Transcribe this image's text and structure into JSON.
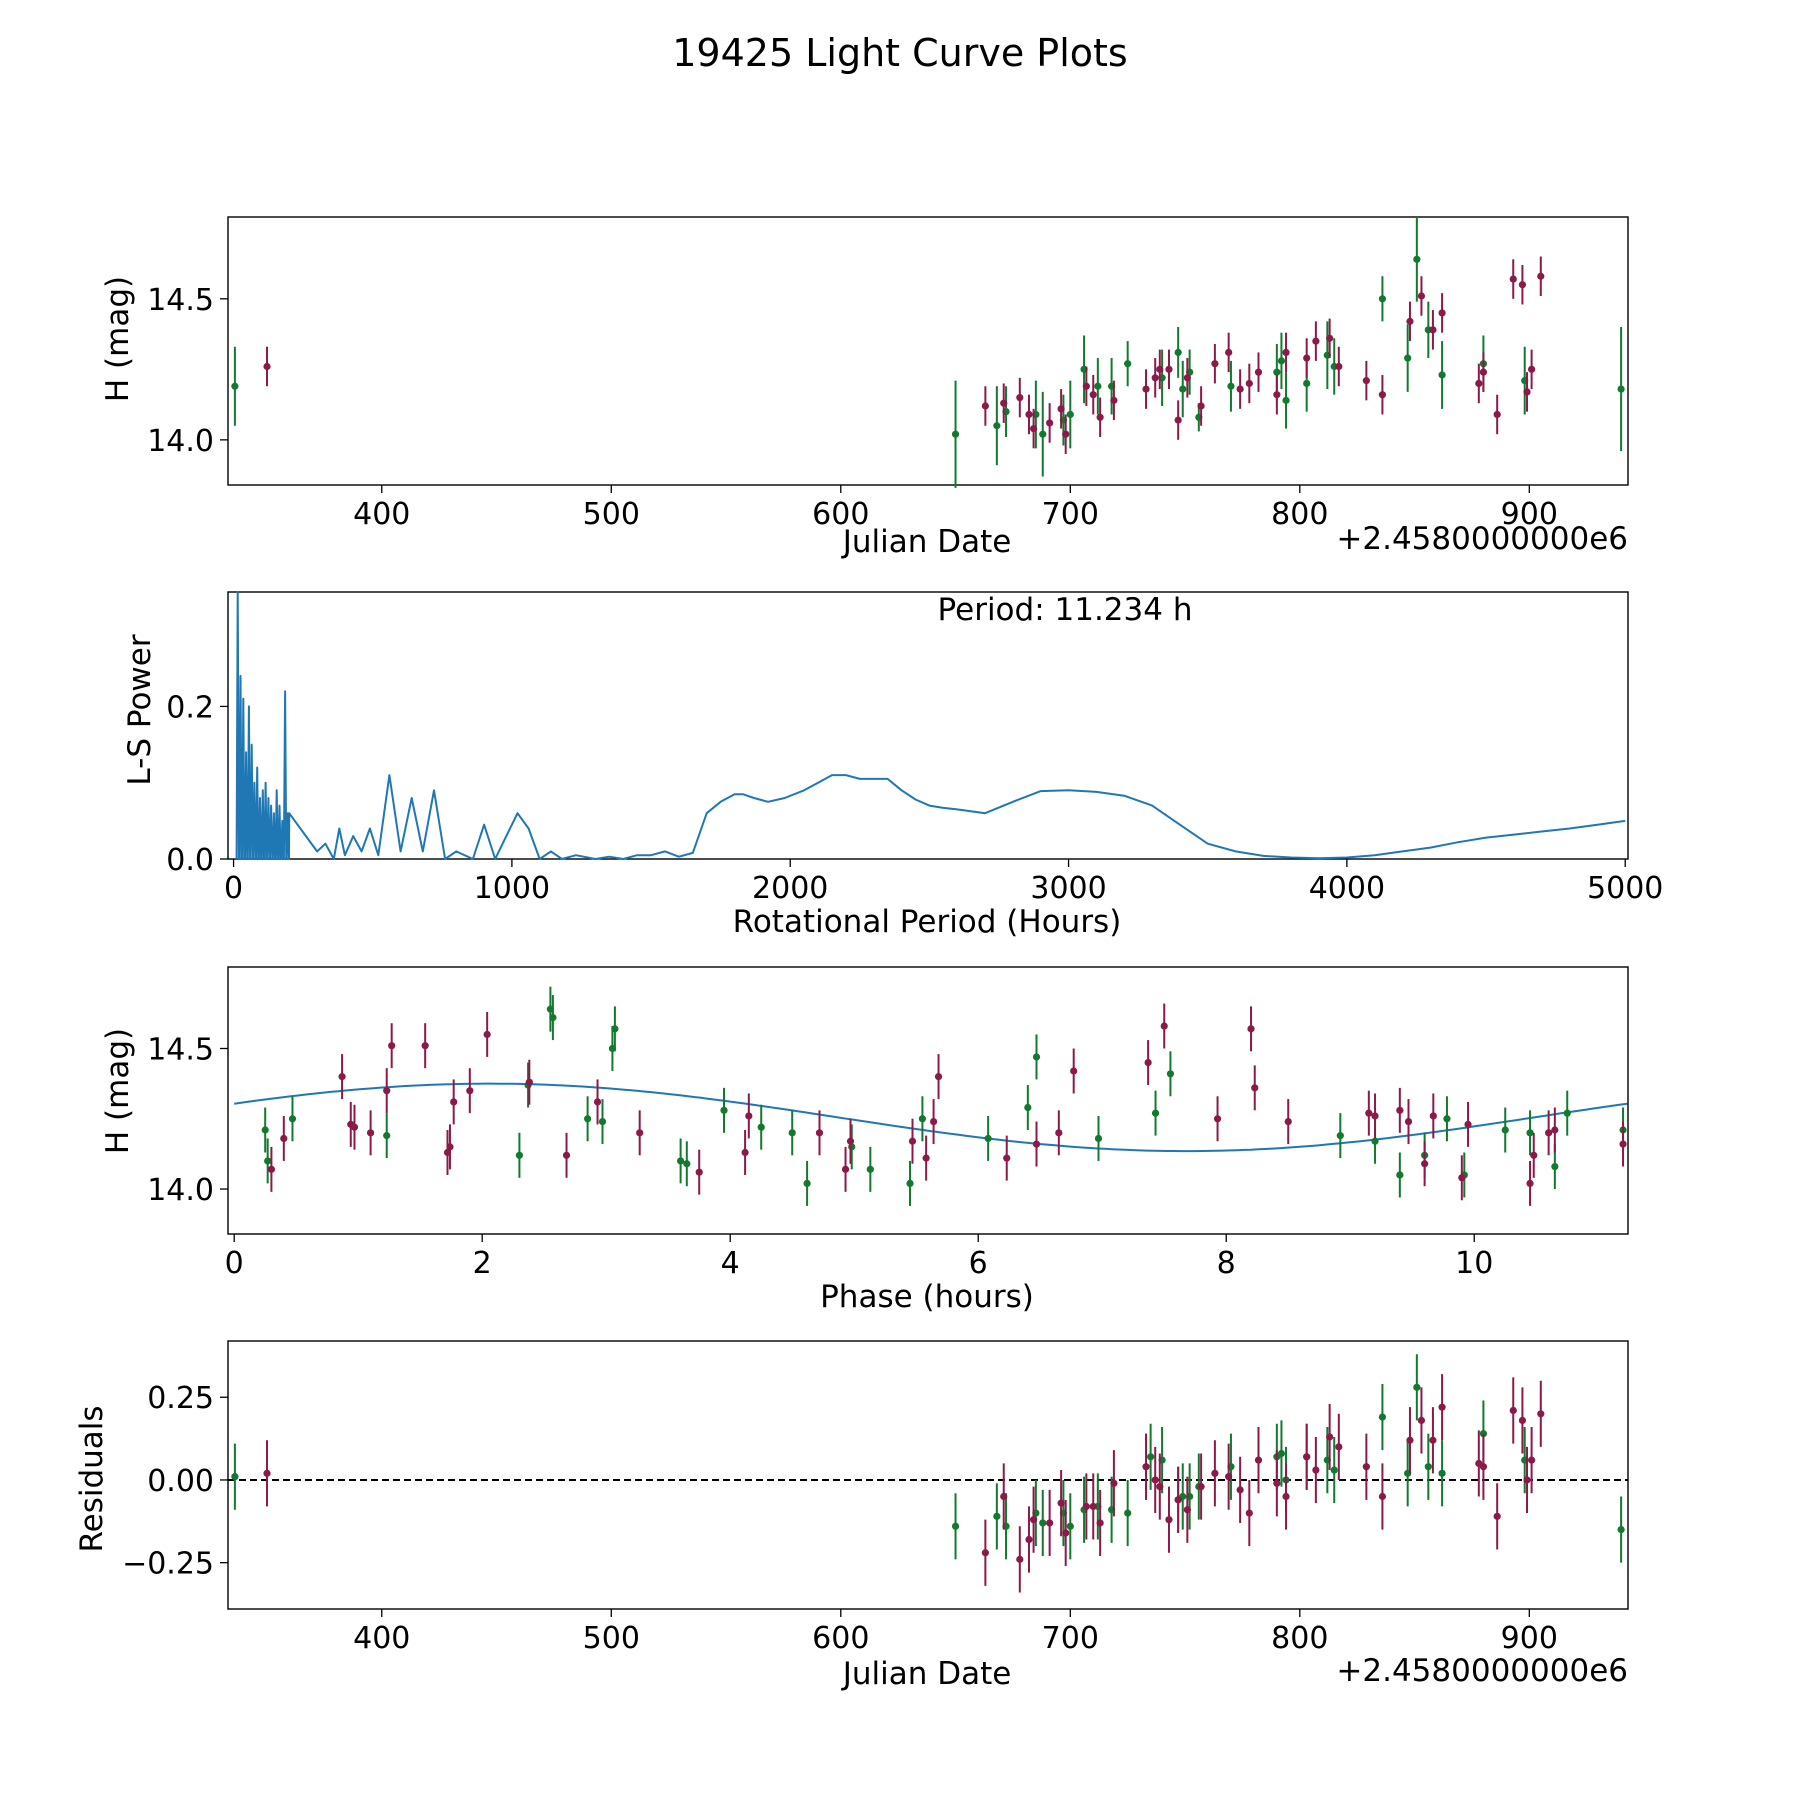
{
  "figure": {
    "title": "19425 Light Curve Plots",
    "colors": {
      "red": "#8b1a4a",
      "green": "#117a2e",
      "blue": "#1f77b4",
      "axis": "#000000"
    }
  },
  "chart_data": [
    {
      "id": "lc",
      "type": "scatter",
      "title": "",
      "xlabel": "Julian Date",
      "ylabel": "H (mag)",
      "offset_label": "+2.4580000000e6",
      "xlim": [
        333,
        943
      ],
      "ylim": [
        13.84,
        14.79
      ],
      "xticks": [
        400,
        500,
        600,
        700,
        800,
        900
      ],
      "yticks": [
        14.0,
        14.5
      ],
      "ytick_labels": [
        "14.0",
        "14.5"
      ],
      "series": [
        {
          "name": "green",
          "color": "#117a2e",
          "x": [
            336,
            650,
            668,
            672,
            685,
            688,
            697,
            700,
            706,
            712,
            718,
            725,
            740,
            747,
            749,
            752,
            756,
            770,
            790,
            792,
            794,
            803,
            812,
            815,
            836,
            847,
            851,
            856,
            862,
            880,
            898,
            940
          ],
          "y": [
            14.19,
            14.02,
            14.05,
            14.1,
            14.09,
            14.02,
            14.07,
            14.09,
            14.25,
            14.19,
            14.19,
            14.27,
            14.22,
            14.31,
            14.18,
            14.24,
            14.08,
            14.19,
            14.24,
            14.28,
            14.14,
            14.2,
            14.3,
            14.26,
            14.5,
            14.29,
            14.64,
            14.39,
            14.23,
            14.27,
            14.21,
            14.18
          ],
          "err": [
            0.14,
            0.19,
            0.14,
            0.09,
            0.12,
            0.15,
            0.09,
            0.12,
            0.12,
            0.1,
            0.1,
            0.08,
            0.1,
            0.09,
            0.1,
            0.08,
            0.05,
            0.09,
            0.1,
            0.1,
            0.1,
            0.1,
            0.12,
            0.1,
            0.08,
            0.12,
            0.15,
            0.1,
            0.12,
            0.1,
            0.12,
            0.22
          ]
        },
        {
          "name": "red",
          "color": "#8b1a4a",
          "x": [
            350,
            663,
            671,
            678,
            682,
            684,
            691,
            696,
            698,
            707,
            710,
            713,
            719,
            733,
            737,
            739,
            743,
            747,
            751,
            757,
            763,
            769,
            774,
            778,
            782,
            790,
            794,
            803,
            807,
            813,
            817,
            829,
            836,
            848,
            853,
            858,
            862,
            878,
            880,
            886,
            893,
            897,
            899,
            901,
            905
          ],
          "y": [
            14.26,
            14.12,
            14.13,
            14.15,
            14.09,
            14.04,
            14.06,
            14.11,
            14.02,
            14.19,
            14.16,
            14.08,
            14.14,
            14.18,
            14.22,
            14.25,
            14.25,
            14.07,
            14.22,
            14.12,
            14.27,
            14.31,
            14.18,
            14.2,
            14.24,
            14.16,
            14.31,
            14.29,
            14.35,
            14.36,
            14.26,
            14.21,
            14.16,
            14.42,
            14.51,
            14.39,
            14.45,
            14.2,
            14.24,
            14.09,
            14.57,
            14.55,
            14.17,
            14.25,
            14.58
          ]
        }
      ]
    },
    {
      "id": "ls",
      "type": "line",
      "title": "",
      "annotation": "Period: 11.234 h",
      "xlabel": "Rotational Period (Hours)",
      "ylabel": "L-S Power",
      "xlim": [
        -20,
        5010
      ],
      "ylim": [
        0.0,
        0.35
      ],
      "xticks": [
        0,
        1000,
        2000,
        3000,
        4000,
        5000
      ],
      "yticks": [
        0.0,
        0.2
      ],
      "ytick_labels": [
        "0.0",
        "0.2"
      ],
      "smooth": {
        "x": [
          200,
          260,
          300,
          330,
          360,
          380,
          400,
          430,
          460,
          490,
          520,
          560,
          600,
          640,
          680,
          720,
          760,
          800,
          860,
          900,
          940,
          980,
          1020,
          1060,
          1100,
          1140,
          1180,
          1230,
          1300,
          1350,
          1400,
          1450,
          1500,
          1550,
          1600,
          1650,
          1700,
          1750,
          1800,
          1830,
          1870,
          1920,
          1980,
          2050,
          2100,
          2150,
          2200,
          2250,
          2300,
          2350,
          2400,
          2450,
          2500,
          2550,
          2600,
          2700,
          2800,
          2900,
          3000,
          3100,
          3200,
          3300,
          3400,
          3500,
          3600,
          3700,
          3800,
          3900,
          4000,
          4100,
          4200,
          4300,
          4400,
          4500,
          4600,
          4700,
          4800,
          4900,
          5000
        ],
        "y": [
          0.06,
          0.03,
          0.01,
          0.02,
          0.0,
          0.04,
          0.005,
          0.03,
          0.01,
          0.04,
          0.005,
          0.11,
          0.01,
          0.08,
          0.01,
          0.09,
          0.0,
          0.01,
          0.0,
          0.045,
          0.0,
          0.03,
          0.06,
          0.04,
          0.0,
          0.01,
          0.0,
          0.005,
          0.0,
          0.003,
          0.0,
          0.005,
          0.005,
          0.01,
          0.003,
          0.008,
          0.06,
          0.075,
          0.085,
          0.085,
          0.08,
          0.075,
          0.08,
          0.09,
          0.1,
          0.11,
          0.11,
          0.105,
          0.105,
          0.105,
          0.09,
          0.078,
          0.07,
          0.067,
          0.065,
          0.06,
          0.075,
          0.089,
          0.09,
          0.088,
          0.083,
          0.07,
          0.045,
          0.02,
          0.01,
          0.004,
          0.002,
          0.001,
          0.002,
          0.005,
          0.01,
          0.015,
          0.022,
          0.028,
          0.032,
          0.036,
          0.04,
          0.045,
          0.05
        ]
      },
      "spikes": {
        "x": [
          15,
          25,
          35,
          45,
          55,
          65,
          75,
          85,
          95,
          105,
          115,
          125,
          135,
          145,
          155,
          165,
          175,
          185,
          195
        ],
        "y": [
          0.35,
          0.24,
          0.21,
          0.14,
          0.2,
          0.15,
          0.1,
          0.12,
          0.08,
          0.09,
          0.1,
          0.08,
          0.07,
          0.06,
          0.09,
          0.07,
          0.05,
          0.22,
          0.06
        ]
      }
    },
    {
      "id": "phase",
      "type": "scatter",
      "title": "",
      "xlabel": "Phase (hours)",
      "ylabel": "H (mag)",
      "xlim": [
        -0.05,
        11.24
      ],
      "ylim": [
        13.84,
        14.79
      ],
      "xticks": [
        0,
        2,
        4,
        6,
        8,
        10
      ],
      "yticks": [
        14.0,
        14.5
      ],
      "ytick_labels": [
        "14.0",
        "14.5"
      ],
      "model": {
        "period": 11.234,
        "mean": 14.255,
        "amplitude": 0.12,
        "peak_phase": 2.06
      },
      "series": [
        {
          "name": "green",
          "color": "#117a2e",
          "x": [
            0.25,
            0.27,
            0.47,
            1.23,
            2.3,
            2.37,
            2.55,
            2.57,
            2.85,
            2.97,
            3.05,
            3.07,
            3.6,
            3.65,
            3.95,
            4.25,
            4.5,
            4.62,
            4.98,
            5.13,
            5.45,
            5.55,
            6.08,
            6.4,
            6.47,
            6.97,
            7.43,
            7.55,
            8.92,
            9.2,
            9.4,
            9.6,
            9.78,
            9.92,
            10.25,
            10.45,
            10.65,
            10.75,
            11.2
          ],
          "y": [
            14.21,
            14.1,
            14.25,
            14.19,
            14.12,
            14.37,
            14.64,
            14.61,
            14.25,
            14.24,
            14.5,
            14.57,
            14.1,
            14.09,
            14.28,
            14.22,
            14.2,
            14.02,
            14.15,
            14.07,
            14.02,
            14.25,
            14.18,
            14.29,
            14.47,
            14.18,
            14.27,
            14.41,
            14.19,
            14.17,
            14.05,
            14.12,
            14.25,
            14.05,
            14.21,
            14.2,
            14.08,
            14.27,
            14.21
          ]
        },
        {
          "name": "red",
          "color": "#8b1a4a",
          "x": [
            0.3,
            0.4,
            0.87,
            0.94,
            0.97,
            1.1,
            1.23,
            1.27,
            1.54,
            1.72,
            1.74,
            1.77,
            1.9,
            2.04,
            2.38,
            2.68,
            2.93,
            3.27,
            3.75,
            4.12,
            4.15,
            4.72,
            4.93,
            4.97,
            5.47,
            5.58,
            5.64,
            5.68,
            6.23,
            6.47,
            6.65,
            6.77,
            7.37,
            7.5,
            7.93,
            8.2,
            8.23,
            8.5,
            9.15,
            9.2,
            9.4,
            9.47,
            9.6,
            9.67,
            9.9,
            9.95,
            10.45,
            10.48,
            10.6,
            10.65,
            11.2
          ],
          "y": [
            14.07,
            14.18,
            14.4,
            14.23,
            14.22,
            14.2,
            14.35,
            14.51,
            14.51,
            14.13,
            14.15,
            14.31,
            14.35,
            14.55,
            14.38,
            14.12,
            14.31,
            14.2,
            14.06,
            14.13,
            14.26,
            14.2,
            14.07,
            14.17,
            14.17,
            14.11,
            14.24,
            14.4,
            14.11,
            14.16,
            14.2,
            14.42,
            14.45,
            14.58,
            14.25,
            14.57,
            14.36,
            14.24,
            14.27,
            14.26,
            14.28,
            14.24,
            14.09,
            14.26,
            14.04,
            14.23,
            14.02,
            14.12,
            14.2,
            14.21,
            14.16
          ]
        }
      ]
    },
    {
      "id": "resid",
      "type": "scatter",
      "title": "",
      "xlabel": "Julian Date",
      "ylabel": "Residuals",
      "offset_label": "+2.4580000000e6",
      "xlim": [
        333,
        943
      ],
      "ylim": [
        -0.39,
        0.42
      ],
      "xticks": [
        400,
        500,
        600,
        700,
        800,
        900
      ],
      "yticks": [
        0.25,
        0.0,
        -0.25
      ],
      "ytick_labels": [
        "0.25",
        "0.00",
        "−0.25"
      ],
      "hline": 0.0,
      "series": [
        {
          "name": "green",
          "color": "#117a2e",
          "x": [
            336,
            650,
            668,
            672,
            685,
            688,
            697,
            700,
            706,
            712,
            718,
            725,
            735,
            740,
            747,
            749,
            752,
            756,
            770,
            790,
            792,
            794,
            803,
            812,
            815,
            836,
            847,
            851,
            856,
            862,
            880,
            898,
            940
          ],
          "y": [
            0.01,
            -0.14,
            -0.11,
            -0.14,
            -0.1,
            -0.13,
            -0.1,
            -0.14,
            -0.09,
            -0.08,
            -0.09,
            -0.1,
            0.07,
            0.06,
            -0.06,
            -0.05,
            -0.05,
            -0.02,
            0.04,
            0.07,
            0.08,
            0.0,
            0.07,
            0.06,
            0.03,
            0.19,
            0.02,
            0.28,
            0.04,
            0.02,
            0.14,
            0.06,
            -0.15
          ]
        },
        {
          "name": "red",
          "color": "#8b1a4a",
          "x": [
            350,
            663,
            671,
            678,
            682,
            684,
            691,
            696,
            698,
            707,
            710,
            713,
            719,
            733,
            737,
            739,
            743,
            747,
            751,
            757,
            763,
            769,
            774,
            778,
            782,
            790,
            794,
            803,
            807,
            813,
            817,
            829,
            836,
            848,
            853,
            858,
            862,
            878,
            880,
            886,
            893,
            897,
            899,
            901,
            905
          ],
          "y": [
            0.02,
            -0.22,
            -0.05,
            -0.24,
            -0.18,
            -0.12,
            -0.13,
            -0.07,
            -0.16,
            -0.08,
            -0.08,
            -0.13,
            -0.01,
            0.04,
            0.0,
            -0.02,
            -0.12,
            -0.06,
            -0.09,
            -0.02,
            0.02,
            0.01,
            -0.03,
            -0.1,
            0.06,
            -0.01,
            -0.05,
            0.07,
            0.03,
            0.13,
            0.1,
            0.04,
            -0.05,
            0.12,
            0.18,
            0.12,
            0.22,
            0.05,
            0.04,
            -0.11,
            0.21,
            0.18,
            0.0,
            0.06,
            0.2
          ]
        }
      ]
    }
  ]
}
